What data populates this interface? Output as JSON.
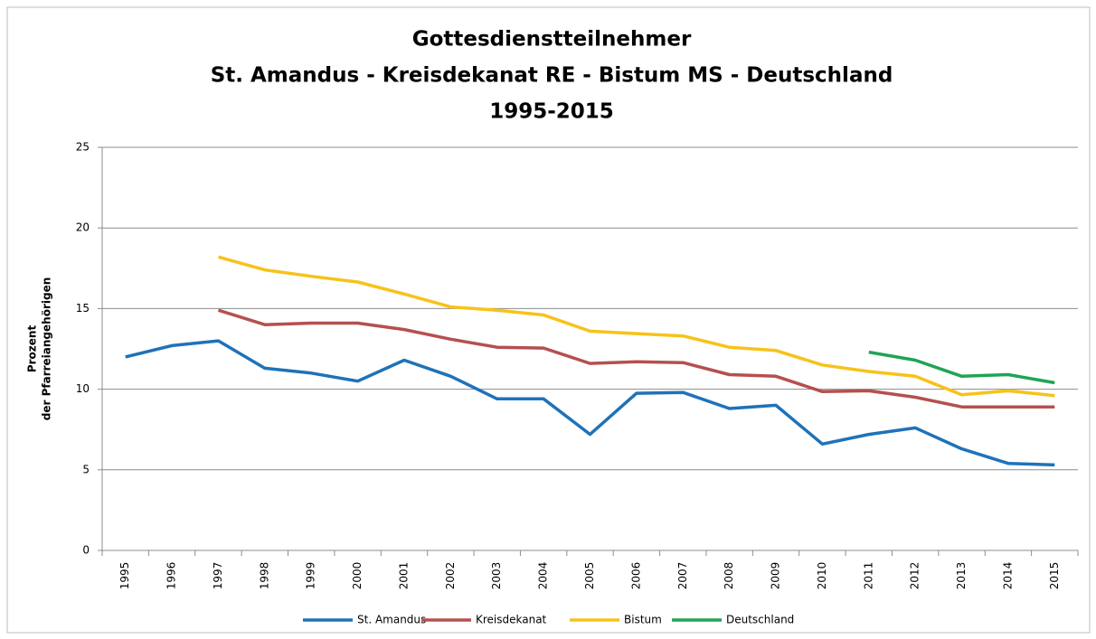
{
  "chart_data": {
    "type": "line",
    "title": [
      "Gottesdienstteilnehmer",
      "St. Amandus - Kreisdekanat RE - Bistum MS - Deutschland",
      "1995-2015"
    ],
    "ylabel": [
      "Prozent",
      "der Pfarreiangehörigen"
    ],
    "categories": [
      "1995",
      "1996",
      "1997",
      "1998",
      "1999",
      "2000",
      "2001",
      "2002",
      "2003",
      "2004",
      "2005",
      "2006",
      "2007",
      "2008",
      "2009",
      "2010",
      "2011",
      "2012",
      "2013",
      "2014",
      "2015"
    ],
    "series": [
      {
        "name": "St. Amandus",
        "color": "#1f72b8",
        "values": [
          12.0,
          12.7,
          13.0,
          11.3,
          11.0,
          10.5,
          11.8,
          10.8,
          9.4,
          9.4,
          7.2,
          9.75,
          9.8,
          8.8,
          9.0,
          6.6,
          7.2,
          7.6,
          6.3,
          5.4,
          5.3
        ]
      },
      {
        "name": "Kreisdekanat",
        "color": "#b5504f",
        "values": [
          null,
          null,
          14.9,
          14.0,
          14.1,
          14.1,
          13.7,
          13.1,
          12.6,
          12.55,
          11.6,
          11.7,
          11.65,
          10.9,
          10.8,
          9.85,
          9.9,
          9.5,
          8.9,
          8.9,
          8.9
        ]
      },
      {
        "name": "Bistum",
        "color": "#f7c21a",
        "values": [
          null,
          null,
          18.2,
          17.4,
          17.0,
          16.65,
          15.9,
          15.1,
          14.9,
          14.6,
          13.6,
          13.45,
          13.3,
          12.6,
          12.4,
          11.5,
          11.1,
          10.8,
          9.65,
          9.9,
          9.6
        ]
      },
      {
        "name": "Deutschland",
        "color": "#20a456",
        "values": [
          null,
          null,
          null,
          null,
          null,
          null,
          null,
          null,
          null,
          null,
          null,
          null,
          null,
          null,
          null,
          null,
          12.3,
          11.8,
          10.8,
          10.9,
          10.4
        ]
      }
    ],
    "ylim": [
      0,
      25
    ],
    "yticks": [
      0,
      5,
      10,
      15,
      20,
      25
    ],
    "grid": true,
    "legend": "bottom"
  }
}
